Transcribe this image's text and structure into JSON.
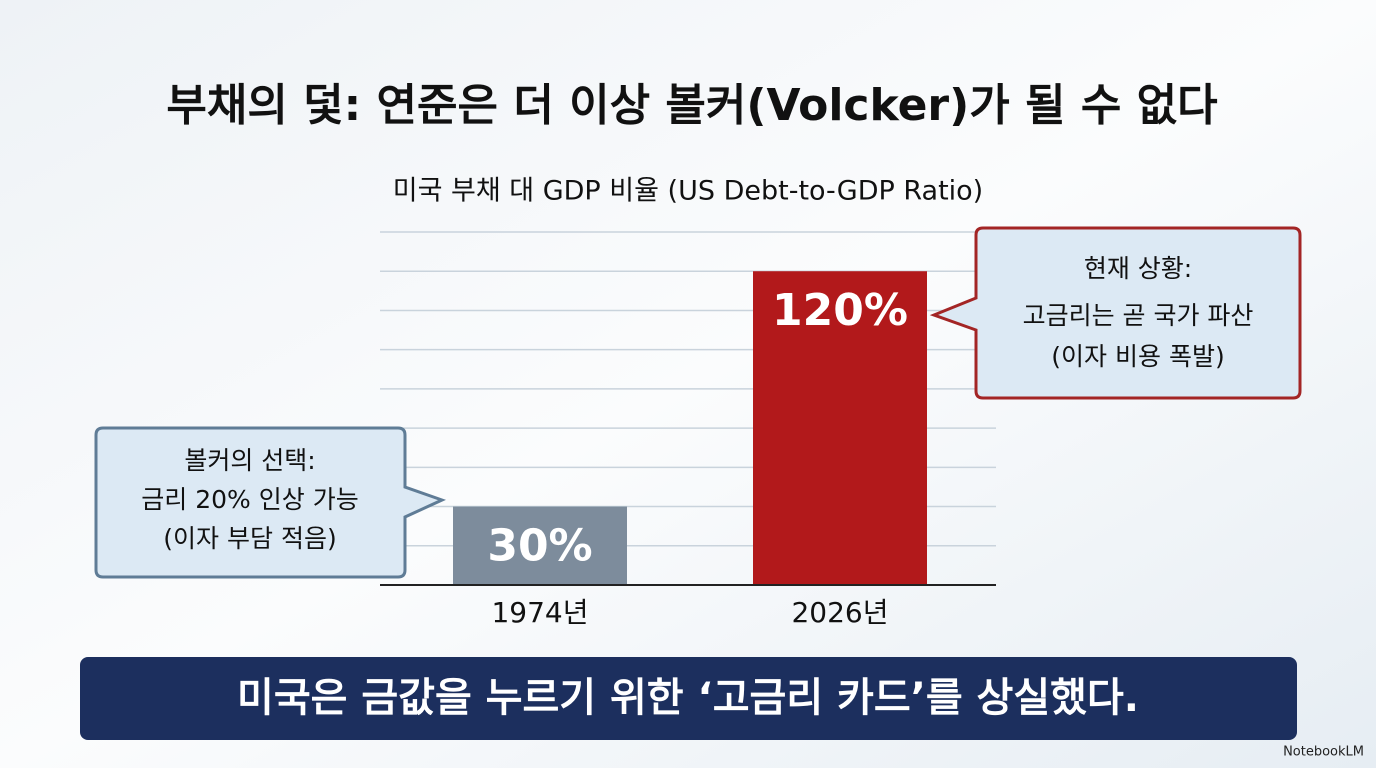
{
  "chart_data": {
    "type": "bar",
    "title": "부채의 덫: 연준은 더 이상 볼커(Volcker)가 될 수 없다",
    "subtitle": "미국 부채 대 GDP 비율 (US Debt-to-GDP Ratio)",
    "categories": [
      "1974년",
      "2026년"
    ],
    "values": [
      30,
      120
    ],
    "value_labels": [
      "30%",
      "120%"
    ],
    "colors": [
      "#7d8c9c",
      "#b2191b"
    ],
    "ylim": [
      0,
      135
    ],
    "yticks": [
      15,
      30,
      45,
      60,
      75,
      90,
      105,
      120,
      135
    ],
    "grid": true,
    "annotations": [
      [
        "볼커의 선택:",
        "금리 20% 인상 가능",
        "(이자 부담 적음)"
      ],
      [
        "현재 상황:",
        "고금리는 곧 국가 파산",
        "(이자 비용 폭발)"
      ]
    ]
  },
  "caption": "미국은 금값을 누르기 위한 ‘고금리 카드’를 상실했다.",
  "watermark": "NotebookLM"
}
